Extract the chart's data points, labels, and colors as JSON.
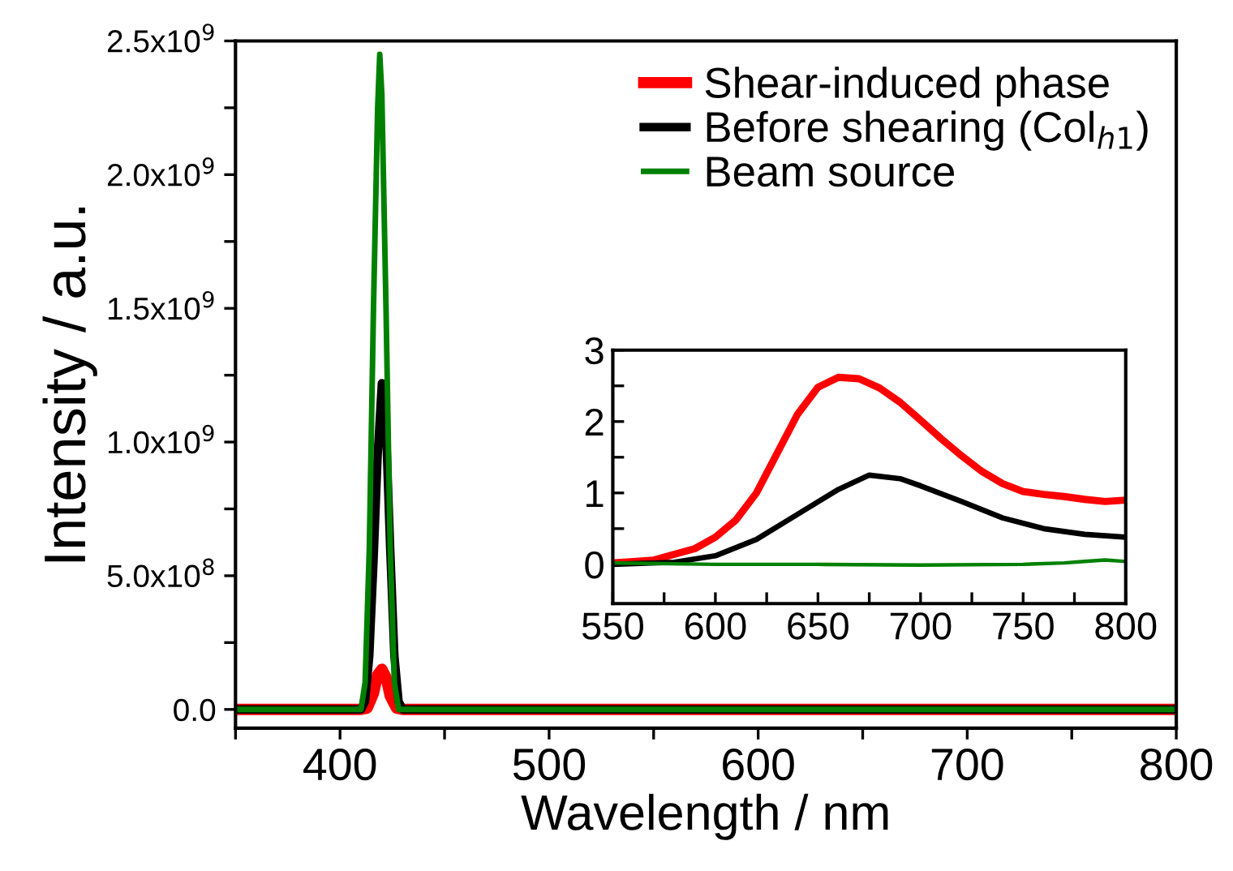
{
  "chart_data": [
    {
      "type": "line",
      "xlabel": "Wavelength / nm",
      "ylabel": "Intensity / a.u.",
      "xlim": [
        350,
        800
      ],
      "ylim": [
        -70000000,
        2500000000
      ],
      "xticks": [
        {
          "value": 350,
          "label": null
        },
        400,
        {
          "value": 450,
          "label": null
        },
        500,
        {
          "value": 550,
          "label": null
        },
        600,
        {
          "value": 650,
          "label": null
        },
        700,
        {
          "value": 750,
          "label": null
        },
        800
      ],
      "yticks": [
        {
          "value": 0,
          "label": "0.0"
        },
        {
          "value": 250000000,
          "label": null
        },
        {
          "value": 500000000,
          "label": "5.0x10$^{8}$"
        },
        {
          "value": 750000000,
          "label": null
        },
        {
          "value": 1000000000,
          "label": "1.0x10$^{9}$"
        },
        {
          "value": 1250000000,
          "label": null
        },
        {
          "value": 1500000000,
          "label": "1.5x10$^{9}$"
        },
        {
          "value": 1750000000,
          "label": null
        },
        {
          "value": 2000000000,
          "label": "2.0x10$^{9}$"
        },
        {
          "value": 2250000000,
          "label": null
        },
        {
          "value": 2500000000,
          "label": "2.5x10$^{9}$"
        }
      ],
      "legend": "top right",
      "grid": false,
      "series": [
        {
          "name": "Shear-induced phase",
          "color": "#ff0000",
          "x": [
            350,
            410,
            413,
            416,
            418,
            420,
            422,
            424,
            427,
            430,
            800
          ],
          "values": [
            0,
            0,
            5000000,
            60000000,
            130000000,
            150000000,
            120000000,
            50000000,
            5000000,
            0,
            0
          ]
        },
        {
          "name": "Before shearing (Col$_{h1}$)",
          "color": "#000000",
          "x": [
            350,
            410,
            412,
            414,
            416,
            418,
            420,
            422,
            424,
            426,
            428,
            430,
            800
          ],
          "values": [
            0,
            0,
            30000000,
            200000000,
            550000000,
            950000000,
            1220000000,
            1050000000,
            600000000,
            200000000,
            30000000,
            0,
            0
          ]
        },
        {
          "name": "Beam source",
          "color": "#008000",
          "x": [
            350,
            410,
            412,
            414,
            416,
            418,
            419,
            420,
            422,
            424,
            426,
            428,
            800
          ],
          "values": [
            0,
            0,
            100000000,
            600000000,
            1500000000,
            2250000000,
            2450000000,
            2300000000,
            1500000000,
            600000000,
            100000000,
            0,
            0
          ]
        }
      ]
    },
    {
      "type": "line",
      "xlim": [
        550,
        800
      ],
      "ylim": [
        -0.55,
        3
      ],
      "xticks": [
        550,
        {
          "value": 575,
          "label": null
        },
        600,
        {
          "value": 625,
          "label": null
        },
        650,
        {
          "value": 675,
          "label": null
        },
        700,
        {
          "value": 725,
          "label": null
        },
        750,
        {
          "value": 775,
          "label": null
        },
        800
      ],
      "yticks": [
        0,
        {
          "value": 0.5,
          "label": null
        },
        1,
        {
          "value": 1.5,
          "label": null
        },
        2,
        {
          "value": 2.5,
          "label": null
        },
        3
      ],
      "grid": false,
      "series": [
        {
          "color": "#ff0000",
          "x": [
            550,
            570,
            590,
            600,
            610,
            620,
            630,
            640,
            650,
            660,
            670,
            680,
            690,
            700,
            710,
            720,
            730,
            740,
            750,
            760,
            770,
            780,
            790,
            800
          ],
          "values": [
            0.02,
            0.06,
            0.22,
            0.38,
            0.62,
            1.0,
            1.55,
            2.1,
            2.48,
            2.62,
            2.6,
            2.47,
            2.27,
            2.02,
            1.76,
            1.52,
            1.3,
            1.13,
            1.02,
            0.98,
            0.95,
            0.91,
            0.88,
            0.9
          ]
        },
        {
          "color": "#000000",
          "x": [
            550,
            580,
            600,
            620,
            640,
            660,
            675,
            690,
            700,
            720,
            740,
            760,
            780,
            800
          ],
          "values": [
            0,
            0.03,
            0.12,
            0.35,
            0.7,
            1.05,
            1.25,
            1.2,
            1.1,
            0.88,
            0.65,
            0.5,
            0.42,
            0.38
          ]
        },
        {
          "color": "#008000",
          "x": [
            550,
            600,
            650,
            700,
            750,
            770,
            780,
            790,
            800
          ],
          "values": [
            0.02,
            0.0,
            0.0,
            -0.01,
            0.0,
            0.02,
            0.04,
            0.06,
            0.04
          ]
        }
      ]
    }
  ]
}
